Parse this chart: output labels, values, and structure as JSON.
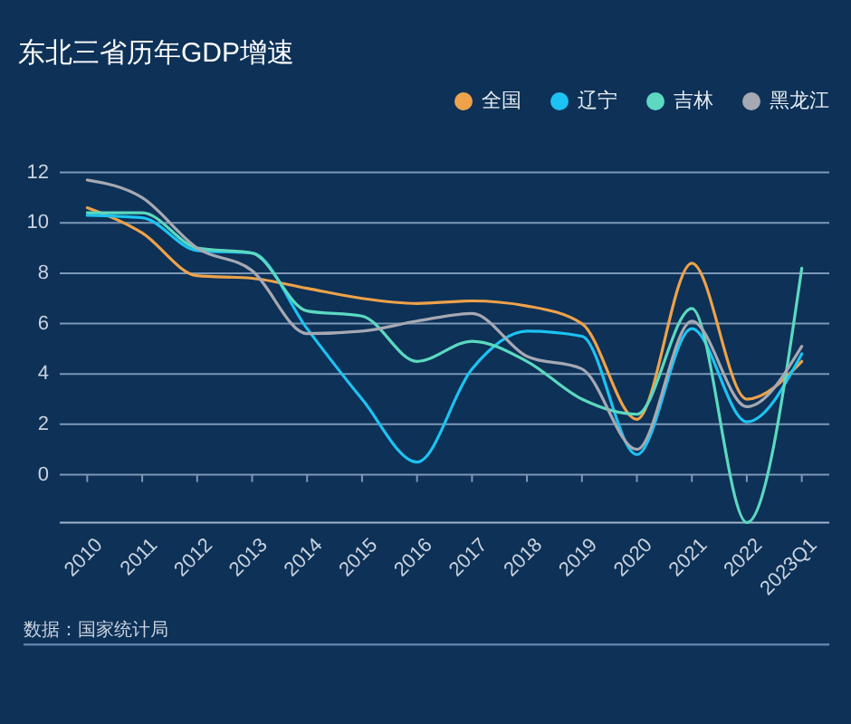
{
  "chart_data": {
    "type": "line",
    "title": "东北三省历年GDP增速",
    "categories": [
      "2010",
      "2011",
      "2012",
      "2013",
      "2014",
      "2015",
      "2016",
      "2017",
      "2018",
      "2019",
      "2020",
      "2021",
      "2022",
      "2023Q1"
    ],
    "series": [
      {
        "name": "全国",
        "color": "#eea24a",
        "values": [
          10.6,
          9.6,
          7.9,
          7.8,
          7.4,
          7.0,
          6.8,
          6.9,
          6.7,
          6.0,
          2.2,
          8.4,
          3.0,
          4.5
        ]
      },
      {
        "name": "辽宁",
        "color": "#1cc3f2",
        "values": [
          10.3,
          10.2,
          8.9,
          8.8,
          5.8,
          3.0,
          0.5,
          4.2,
          5.7,
          5.5,
          0.8,
          5.8,
          2.1,
          4.8
        ]
      },
      {
        "name": "吉林",
        "color": "#5cd9c0",
        "values": [
          10.4,
          10.4,
          9.0,
          8.8,
          6.5,
          6.3,
          4.5,
          5.3,
          4.5,
          3.0,
          2.4,
          6.6,
          -1.9,
          8.2
        ]
      },
      {
        "name": "黑龙江",
        "color": "#a6a9b3",
        "values": [
          11.7,
          11.0,
          9.0,
          8.1,
          5.6,
          5.7,
          6.1,
          6.4,
          4.7,
          4.2,
          1.0,
          6.1,
          2.7,
          5.1
        ]
      }
    ],
    "ylim": [
      -1.9,
      12
    ],
    "yticks": [
      0,
      2,
      4,
      6,
      8,
      10,
      12
    ],
    "grid": "y",
    "legend": "top right",
    "annotations": [
      "数据：国家统计局"
    ]
  }
}
